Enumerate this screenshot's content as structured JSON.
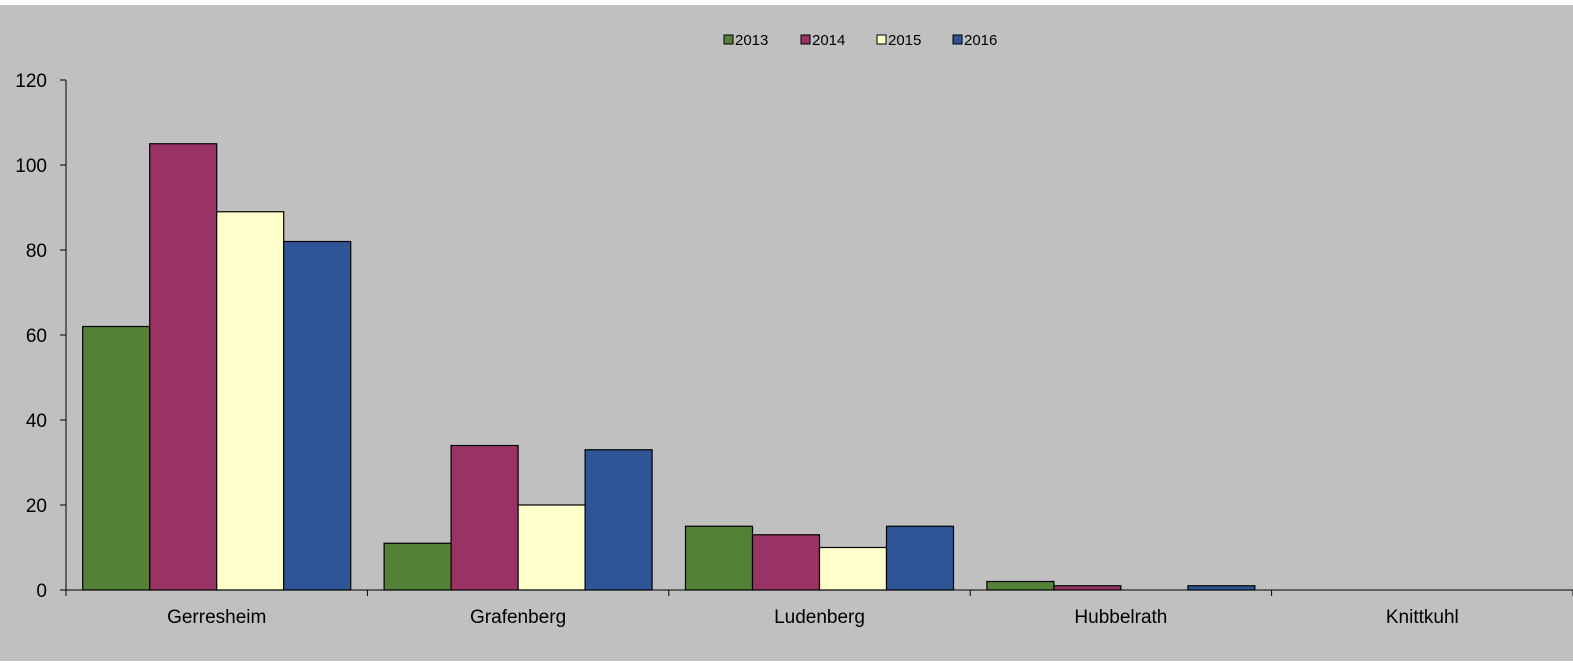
{
  "colors": {
    "background": "#ffffff",
    "plot_area": "#c0c0c0",
    "axis": "#000000",
    "series": [
      "#538135",
      "#993366",
      "#ffffcc",
      "#2f5597"
    ]
  },
  "chart_data": {
    "type": "bar",
    "title": "",
    "xlabel": "",
    "ylabel": "",
    "categories": [
      "Gerresheim",
      "Grafenberg",
      "Ludenberg",
      "Hubbelrath",
      "Knittkuhl"
    ],
    "series": [
      {
        "name": "2013",
        "values": [
          62,
          11,
          15,
          2,
          0
        ]
      },
      {
        "name": "2014",
        "values": [
          105,
          34,
          13,
          1,
          0
        ]
      },
      {
        "name": "2015",
        "values": [
          89,
          20,
          10,
          0,
          0
        ]
      },
      {
        "name": "2016",
        "values": [
          82,
          33,
          15,
          1,
          0
        ]
      }
    ],
    "ylim": [
      0,
      120
    ],
    "yticks": [
      "0",
      "20",
      "40",
      "60",
      "80",
      "100",
      "120"
    ],
    "grid": false,
    "legend_position": "top-center"
  }
}
